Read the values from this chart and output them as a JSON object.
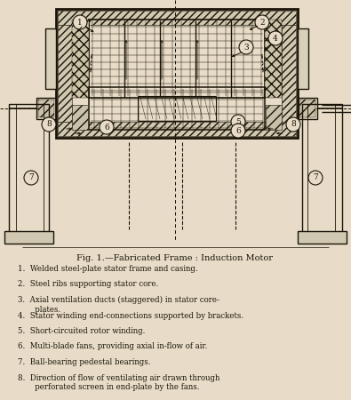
{
  "bg_color": "#e8dcc8",
  "line_color": "#1a1408",
  "title": "Fig. 1.—Fabricated Frame : Induction Motor",
  "legend_items": [
    "1.  Welded steel-plate stator frame and casing.",
    "2.  Steel ribs supporting stator core.",
    "3.  Axial ventilation ducts (staggered) in stator core-\n       plates.",
    "4.  Stator winding end-connections supported by brackets.",
    "5.  Short-circuited rotor winding.",
    "6.  Multi-blade fans, providing axial in-flow of air.",
    "7.  Ball-bearing pedestal bearings.",
    "8.  Direction of flow of ventilating air drawn through\n       perforated screen in end-plate by the fans."
  ],
  "fig_width": 3.95,
  "fig_height": 4.5,
  "dpi": 100
}
